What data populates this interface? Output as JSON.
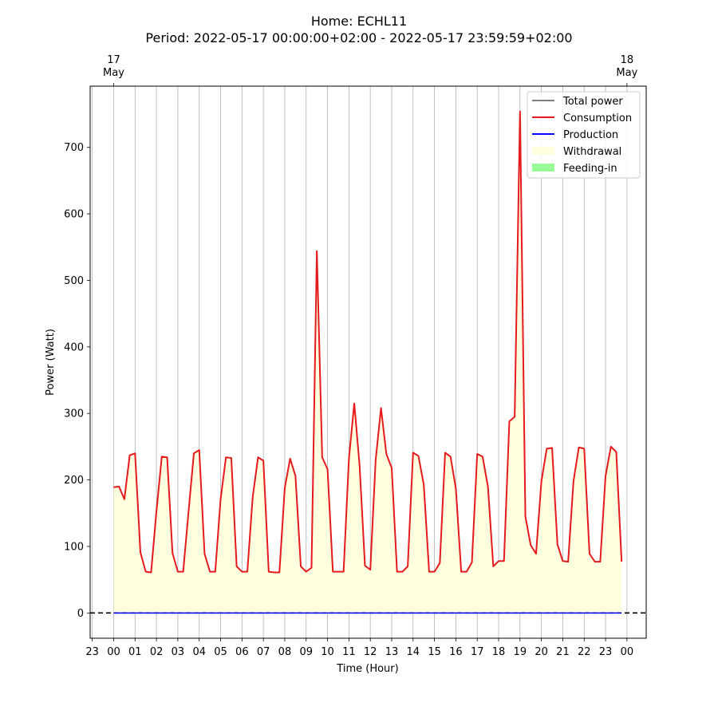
{
  "chart_data": {
    "type": "line",
    "title": "Home: ECHL11",
    "subtitle": "Period: 2022-05-17 00:00:00+02:00 - 2022-05-17 23:59:59+02:00",
    "xlabel": "Time (Hour)",
    "ylabel": "Power (Watt)",
    "ylim": [
      -38,
      792
    ],
    "yticks": [
      0,
      100,
      200,
      300,
      400,
      500,
      600,
      700
    ],
    "xlim_hours": [
      -1.1,
      24.9
    ],
    "xticks": [
      {
        "h": -1,
        "label": "23"
      },
      {
        "h": 0,
        "label": "00"
      },
      {
        "h": 1,
        "label": "01"
      },
      {
        "h": 2,
        "label": "02"
      },
      {
        "h": 3,
        "label": "03"
      },
      {
        "h": 4,
        "label": "04"
      },
      {
        "h": 5,
        "label": "05"
      },
      {
        "h": 6,
        "label": "06"
      },
      {
        "h": 7,
        "label": "07"
      },
      {
        "h": 8,
        "label": "08"
      },
      {
        "h": 9,
        "label": "09"
      },
      {
        "h": 10,
        "label": "10"
      },
      {
        "h": 11,
        "label": "11"
      },
      {
        "h": 12,
        "label": "12"
      },
      {
        "h": 13,
        "label": "13"
      },
      {
        "h": 14,
        "label": "14"
      },
      {
        "h": 15,
        "label": "15"
      },
      {
        "h": 16,
        "label": "16"
      },
      {
        "h": 17,
        "label": "17"
      },
      {
        "h": 18,
        "label": "18"
      },
      {
        "h": 19,
        "label": "19"
      },
      {
        "h": 20,
        "label": "20"
      },
      {
        "h": 21,
        "label": "21"
      },
      {
        "h": 22,
        "label": "22"
      },
      {
        "h": 23,
        "label": "23"
      },
      {
        "h": 24,
        "label": "00"
      }
    ],
    "top_ticks": [
      {
        "h": 0,
        "day": "17",
        "month": "May"
      },
      {
        "h": 24,
        "day": "18",
        "month": "May"
      }
    ],
    "grid": "vertical",
    "legend_position": "top-right",
    "x": [
      0,
      0.25,
      0.5,
      0.75,
      1,
      1.25,
      1.5,
      1.75,
      2,
      2.25,
      2.5,
      2.75,
      3,
      3.25,
      3.5,
      3.75,
      4,
      4.25,
      4.5,
      4.75,
      5,
      5.25,
      5.5,
      5.75,
      6,
      6.25,
      6.5,
      6.75,
      7,
      7.25,
      7.5,
      7.75,
      8,
      8.25,
      8.5,
      8.75,
      9,
      9.25,
      9.5,
      9.75,
      10,
      10.25,
      10.5,
      10.75,
      11,
      11.25,
      11.5,
      11.75,
      12,
      12.25,
      12.5,
      12.75,
      13,
      13.25,
      13.5,
      13.75,
      14,
      14.25,
      14.5,
      14.75,
      15,
      15.25,
      15.5,
      15.75,
      16,
      16.25,
      16.5,
      16.75,
      17,
      17.25,
      17.5,
      17.75,
      18,
      18.25,
      18.5,
      18.75,
      19,
      19.25,
      19.5,
      19.75,
      20,
      20.25,
      20.5,
      20.75,
      21,
      21.25,
      21.5,
      21.75,
      22,
      22.25,
      22.5,
      22.75,
      23,
      23.25,
      23.5,
      23.75
    ],
    "series": [
      {
        "name": "Consumption",
        "color": "#e41a1c",
        "values": [
          189,
          190,
          171,
          237,
          240,
          91,
          62,
          61,
          153,
          235,
          234,
          90,
          62,
          62,
          152,
          240,
          245,
          89,
          62,
          62,
          171,
          234,
          233,
          70,
          62,
          62,
          174,
          234,
          229,
          62,
          61,
          61,
          188,
          232,
          206,
          70,
          62,
          68,
          544,
          234,
          216,
          62,
          62,
          62,
          232,
          315,
          221,
          71,
          65,
          230,
          308,
          239,
          218,
          62,
          62,
          70,
          241,
          236,
          193,
          62,
          62,
          75,
          241,
          235,
          187,
          62,
          62,
          76,
          239,
          235,
          190,
          70,
          78,
          78,
          288,
          295,
          754,
          145,
          102,
          89,
          198,
          247,
          248,
          103,
          78,
          77,
          198,
          249,
          247,
          89,
          77,
          77,
          206,
          250,
          242,
          77
        ]
      },
      {
        "name": "Total power",
        "color": "#808080"
      },
      {
        "name": "Production",
        "color": "#0000ff",
        "values_constant": 0
      },
      {
        "name": "Withdrawal",
        "color": "#ffffe0"
      },
      {
        "name": "Feeding-in",
        "color": "#98fb98"
      }
    ],
    "legend": [
      "Total power",
      "Consumption",
      "Production",
      "Withdrawal",
      "Feeding-in"
    ]
  }
}
